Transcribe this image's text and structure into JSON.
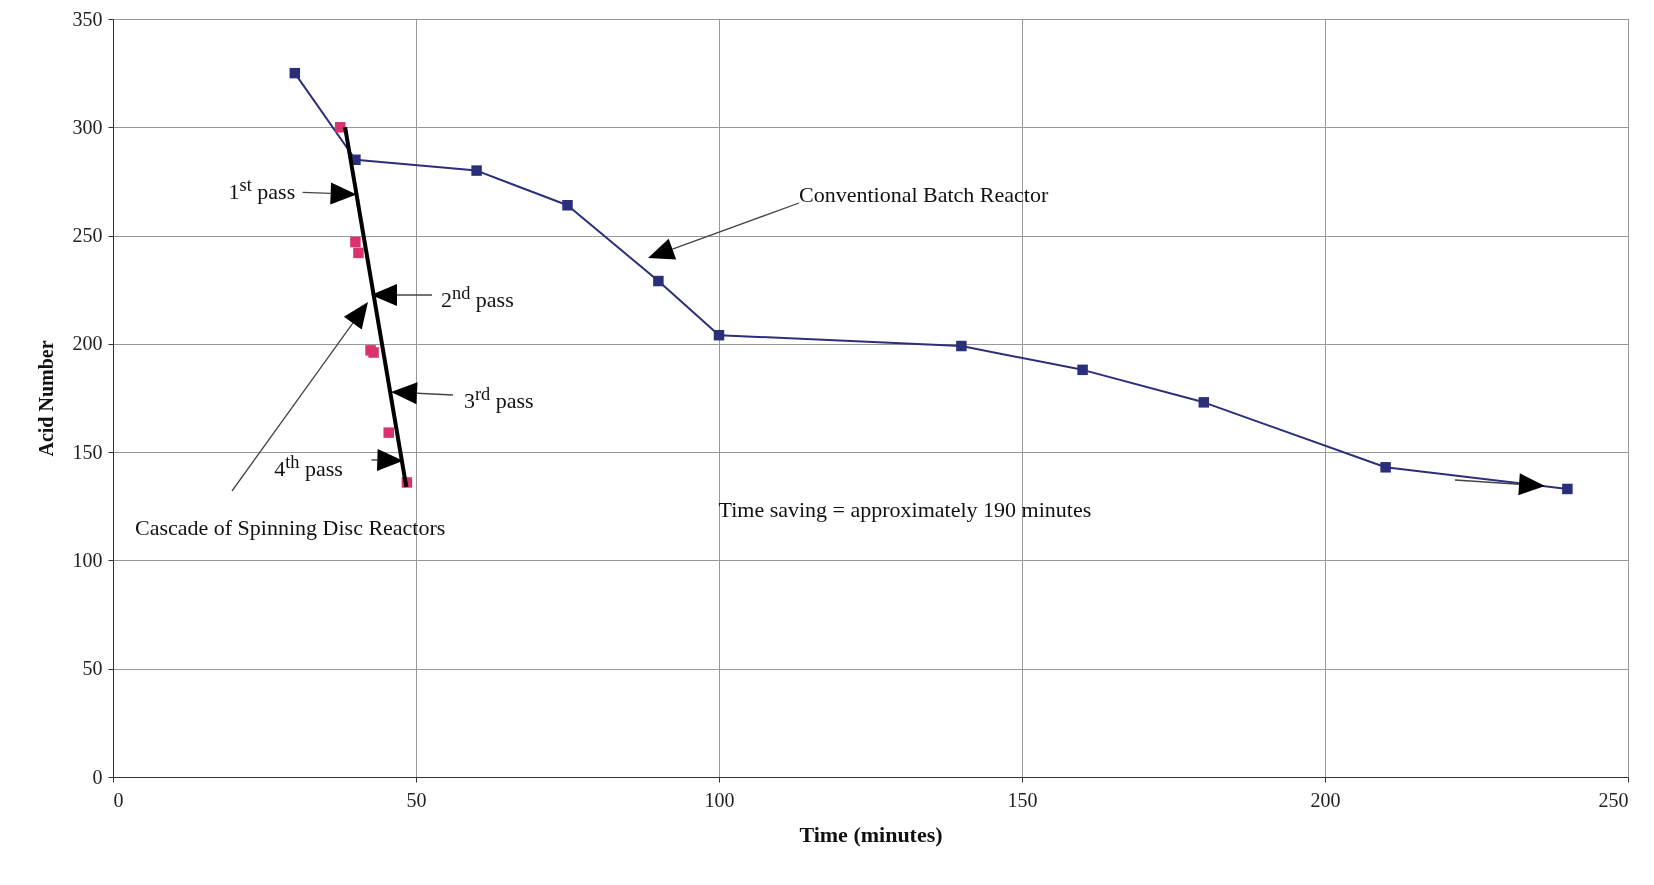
{
  "chart_data": {
    "type": "line",
    "xlabel": "Time (minutes)",
    "ylabel": "Acid Number",
    "xlim": [
      0,
      250
    ],
    "xticks": [
      0,
      50,
      100,
      150,
      200,
      250
    ],
    "ylim": [
      0,
      350
    ],
    "yticks": [
      0,
      50,
      100,
      150,
      200,
      250,
      300,
      350
    ],
    "grid": true,
    "series": [
      {
        "color": "#2b2f7a",
        "marker": "square",
        "x": [
          30,
          40,
          60,
          75,
          90,
          100,
          140,
          160,
          180,
          210,
          240
        ],
        "values": [
          325,
          285,
          280,
          264,
          229,
          204,
          199,
          188,
          173,
          143,
          133
        ]
      },
      {
        "type": "scatter",
        "color": "#d9326e",
        "marker": "square",
        "x": [
          37.5,
          40,
          40.5,
          42.5,
          43,
          45.5,
          48.5
        ],
        "values": [
          300,
          247,
          242,
          197,
          196,
          159,
          136
        ]
      },
      {
        "type": "line",
        "color": "#000000",
        "marker": "none",
        "x": [
          38.3,
          48.4
        ],
        "values": [
          300,
          134
        ]
      }
    ],
    "annotations": [
      {
        "text": "1$^{st}$ pass",
        "x": 40.2,
        "y": 269
      },
      "2$^{nd}$ pass",
      "3$^{rd}$ pass",
      {
        "text": "4$^{th}$ pass",
        "x": 47.9,
        "y": 146
      },
      "Conventional Batch Reactor",
      "Cascade of Spinning Disc Reactors",
      "Time saving = approximately 190 minutes"
    ]
  }
}
